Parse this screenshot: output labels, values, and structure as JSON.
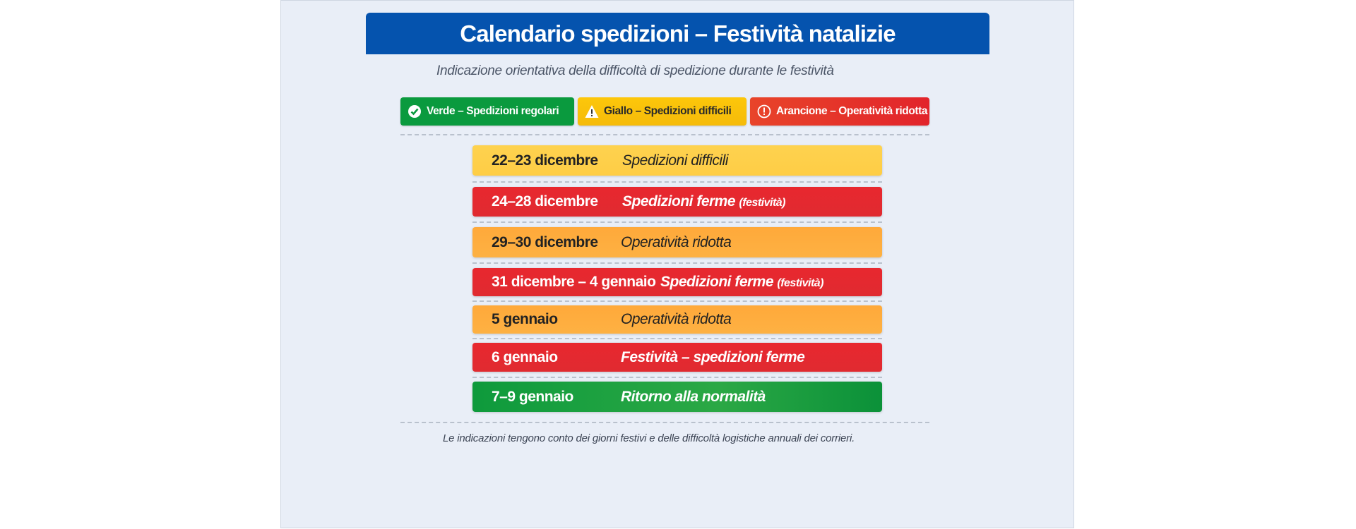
{
  "header": {
    "title": "Calendario spedizioni – Festività natalizie",
    "subtitle": "Indicazione orientativa della difficoltà di spedizione durante le festività"
  },
  "legend": [
    {
      "label": "Verde – Spedizioni regolari",
      "icon": "check-circle-icon",
      "color": "#0a9a3e"
    },
    {
      "label": "Giallo – Spedizioni difficili",
      "icon": "warning-triangle-icon",
      "color": "#fbc30a"
    },
    {
      "label": "Arancione – Operatività ridotta",
      "icon": "exclamation-circle-icon",
      "color": "#e2242b"
    }
  ],
  "rows": [
    {
      "date": "22–23 dicembre",
      "status": "Spedizioni difficili",
      "note": "",
      "level": "yellow"
    },
    {
      "date": "24–28 dicembre",
      "status": "Spedizioni ferme",
      "note": "(festività)",
      "level": "red"
    },
    {
      "date": "29–30 dicembre",
      "status": "Operatività ridotta",
      "note": "",
      "level": "orange"
    },
    {
      "date": "31 dicembre – 4 gennaio",
      "status": "Spedizioni ferme",
      "note": "(festività)",
      "level": "red"
    },
    {
      "date": "5 gennaio",
      "status": "Operatività ridotta",
      "note": "",
      "level": "orange"
    },
    {
      "date": "6 gennaio",
      "status": "Festività – spedizioni ferme",
      "note": "",
      "level": "red"
    },
    {
      "date": "7–9 gennaio",
      "status": "Ritorno alla normalità",
      "note": "",
      "level": "green"
    }
  ],
  "footer": "Le indicazioni tengono conto dei giorni festivi e delle difficoltà logistiche annuali dei corrieri."
}
